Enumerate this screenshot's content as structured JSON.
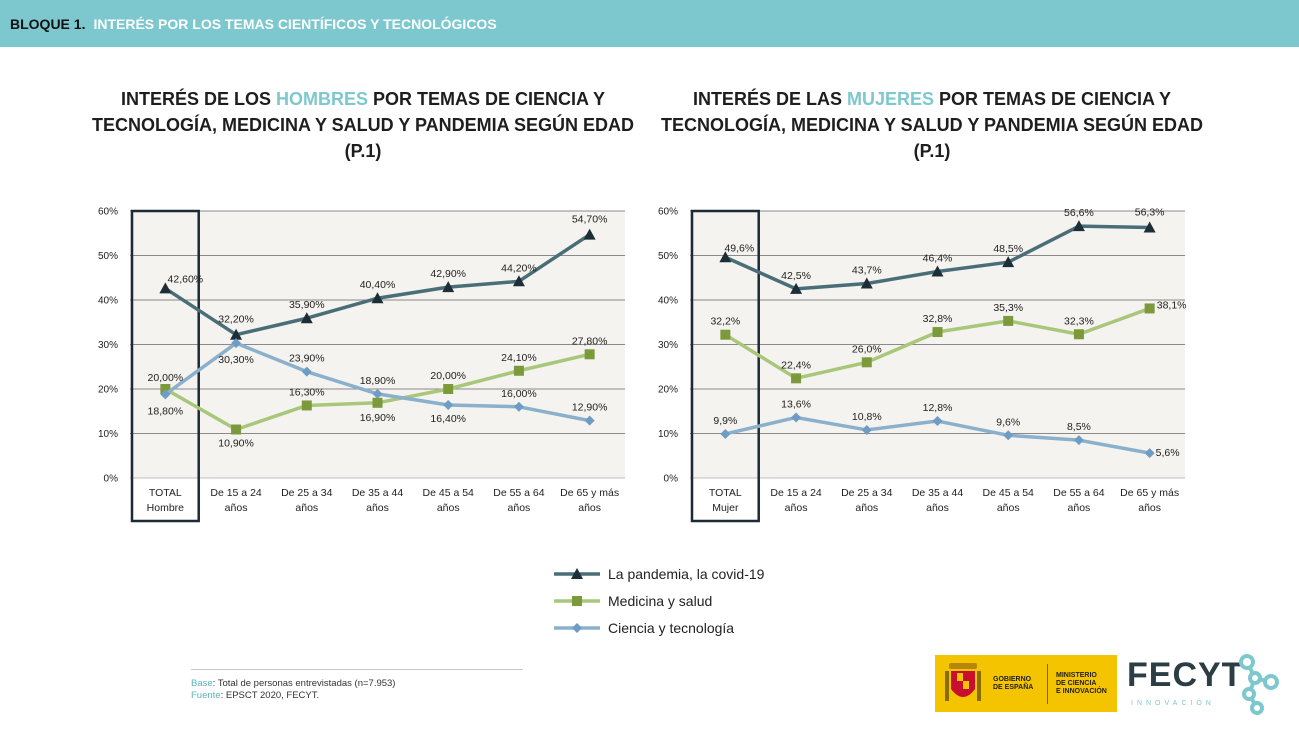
{
  "header": {
    "block": "BLOQUE 1.",
    "title": "INTERÉS POR LOS TEMAS CIENTÍFICOS Y TECNOLÓGICOS"
  },
  "colors": {
    "pandemia": "#4a6e78",
    "medicina": "#a9c77a",
    "ciencia": "#8ab0cc",
    "header": "#7dc8cf",
    "plot_bg": "#f5f3ef"
  },
  "chart_data": [
    {
      "type": "line",
      "title_pre": "INTERÉS DE LOS ",
      "title_highlight": "HOMBRES",
      "title_post": " POR TEMAS DE CIENCIA Y TECNOLOGÍA, MEDICINA Y SALUD Y PANDEMIA SEGÚN EDAD (P.1)",
      "categories": [
        [
          "TOTAL",
          "Hombre"
        ],
        [
          "De 15 a 24",
          "años"
        ],
        [
          "De 25 a 34",
          "años"
        ],
        [
          "De 35 a 44",
          "años"
        ],
        [
          "De 45 a 54",
          "años"
        ],
        [
          "De 55 a 64",
          "años"
        ],
        [
          "De 65 y más",
          "años"
        ]
      ],
      "ytick_labels": [
        "0%",
        "10%",
        "20%",
        "30%",
        "40%",
        "50%",
        "60%"
      ],
      "ylim": [
        0,
        60
      ],
      "series": [
        {
          "key": "pandemia",
          "marker": "triangle",
          "values": [
            42.6,
            32.2,
            35.9,
            40.4,
            42.9,
            44.2,
            54.7
          ],
          "labels": [
            "42,60%",
            "32,20%",
            "35,90%",
            "40,40%",
            "42,90%",
            "44,20%",
            "54,70%"
          ]
        },
        {
          "key": "medicina",
          "marker": "square",
          "values": [
            20.0,
            10.9,
            16.3,
            16.9,
            20.0,
            24.1,
            27.8
          ],
          "labels": [
            "20,00%",
            "10,90%",
            "16,30%",
            "16,90%",
            "20,00%",
            "24,10%",
            "27,80%"
          ]
        },
        {
          "key": "ciencia",
          "marker": "diamond",
          "values": [
            18.8,
            30.3,
            23.9,
            18.9,
            16.4,
            16.0,
            12.9
          ],
          "labels": [
            "18,80%",
            "30,30%",
            "23,90%",
            "18,90%",
            "16,40%",
            "16,00%",
            "12,90%"
          ]
        }
      ]
    },
    {
      "type": "line",
      "title_pre": "INTERÉS DE LAS ",
      "title_highlight": "MUJERES",
      "title_post": " POR TEMAS DE CIENCIA Y TECNOLOGÍA, MEDICINA Y SALUD Y PANDEMIA SEGÚN EDAD (P.1)",
      "categories": [
        [
          "TOTAL",
          "Mujer"
        ],
        [
          "De 15 a 24",
          "años"
        ],
        [
          "De 25 a 34",
          "años"
        ],
        [
          "De 35 a 44",
          "años"
        ],
        [
          "De 45 a 54",
          "años"
        ],
        [
          "De 55 a 64",
          "años"
        ],
        [
          "De 65 y más",
          "años"
        ]
      ],
      "ytick_labels": [
        "0%",
        "10%",
        "20%",
        "30%",
        "40%",
        "50%",
        "60%"
      ],
      "ylim": [
        0,
        60
      ],
      "series": [
        {
          "key": "pandemia",
          "marker": "triangle",
          "values": [
            49.6,
            42.5,
            43.7,
            46.4,
            48.5,
            56.6,
            56.3
          ],
          "labels": [
            "49,6%",
            "42,5%",
            "43,7%",
            "46,4%",
            "48,5%",
            "56,6%",
            "56,3%"
          ]
        },
        {
          "key": "medicina",
          "marker": "square",
          "values": [
            32.2,
            22.4,
            26.0,
            32.8,
            35.3,
            32.3,
            38.1
          ],
          "labels": [
            "32,2%",
            "22,4%",
            "26,0%",
            "32,8%",
            "35,3%",
            "32,3%",
            "38,1%"
          ]
        },
        {
          "key": "ciencia",
          "marker": "diamond",
          "values": [
            9.9,
            13.6,
            10.8,
            12.8,
            9.6,
            8.5,
            5.6
          ],
          "labels": [
            "9,9%",
            "13,6%",
            "10,8%",
            "12,8%",
            "9,6%",
            "8,5%",
            "5,6%"
          ]
        }
      ]
    }
  ],
  "legend": [
    {
      "key": "pandemia",
      "marker": "triangle",
      "label": "La pandemia, la covid-19"
    },
    {
      "key": "medicina",
      "marker": "square",
      "label": "Medicina y salud"
    },
    {
      "key": "ciencia",
      "marker": "diamond",
      "label": "Ciencia y tecnología"
    }
  ],
  "source": {
    "base_label": "Base",
    "base_text": ": Total de personas entrevistadas (n=7.953)",
    "fuente_label": "Fuente",
    "fuente_text": ": EPSCT 2020, FECYT."
  },
  "logos": {
    "gov_a": [
      "GOBIERNO",
      "DE ESPAÑA"
    ],
    "gov_b": [
      "MINISTERIO",
      "DE CIENCIA",
      "E INNOVACIÓN"
    ],
    "fecyt_name": "FECYT",
    "fecyt_sub": "INNOVACIÓN"
  }
}
